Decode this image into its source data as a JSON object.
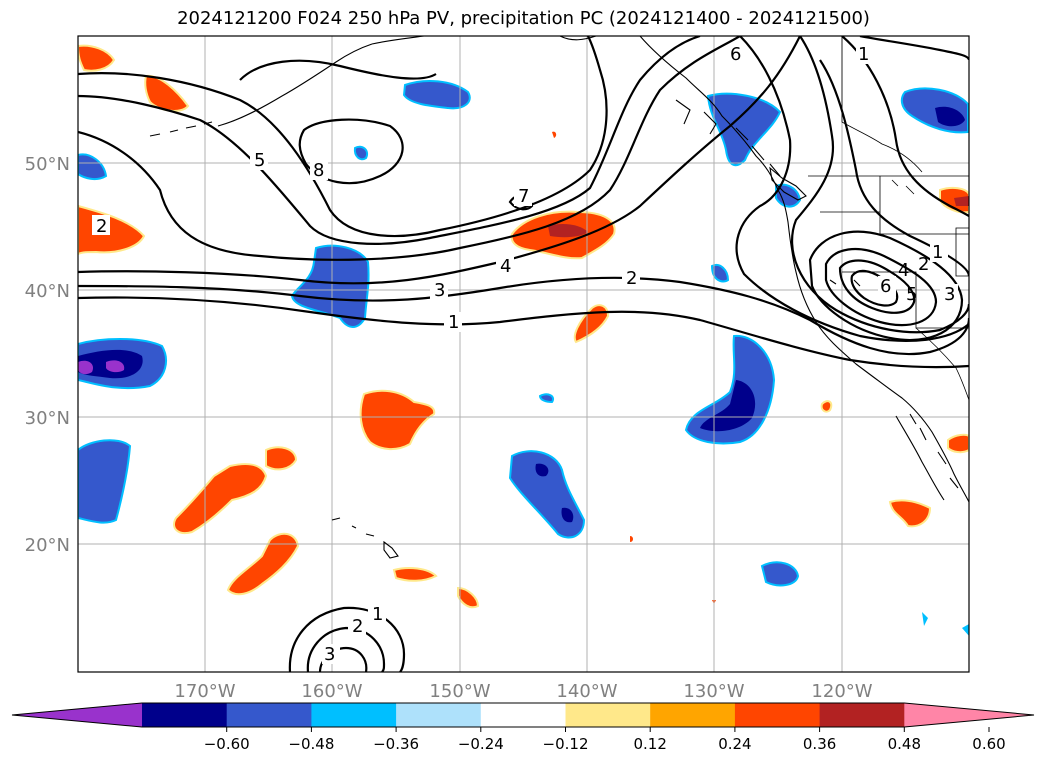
{
  "title": "2024121200 F024 250 hPa PV, precipitation PC (2024121400 - 2024121500)",
  "latitude_labels": [
    "50°N",
    "40°N",
    "30°N",
    "20°N"
  ],
  "longitude_labels": [
    "170°W",
    "160°W",
    "150°W",
    "140°W",
    "130°W",
    "120°W"
  ],
  "contour_labels": [
    "1",
    "2",
    "3",
    "4",
    "5",
    "6",
    "7",
    "8"
  ],
  "colorbar": {
    "ticks": [
      "−0.60",
      "−0.48",
      "−0.36",
      "−0.24",
      "−0.12",
      "0.12",
      "0.24",
      "0.36",
      "0.48",
      "0.60"
    ],
    "colors": [
      "#9932cc",
      "#00008b",
      "#3558cc",
      "#00bfff",
      "#aee1fb",
      "#ffffff",
      "#ffe88a",
      "#ffa500",
      "#ff4500",
      "#b22222",
      "#ff85a7"
    ]
  },
  "colors": {
    "grid": "#b0b0b0",
    "contour": "#000000"
  }
}
